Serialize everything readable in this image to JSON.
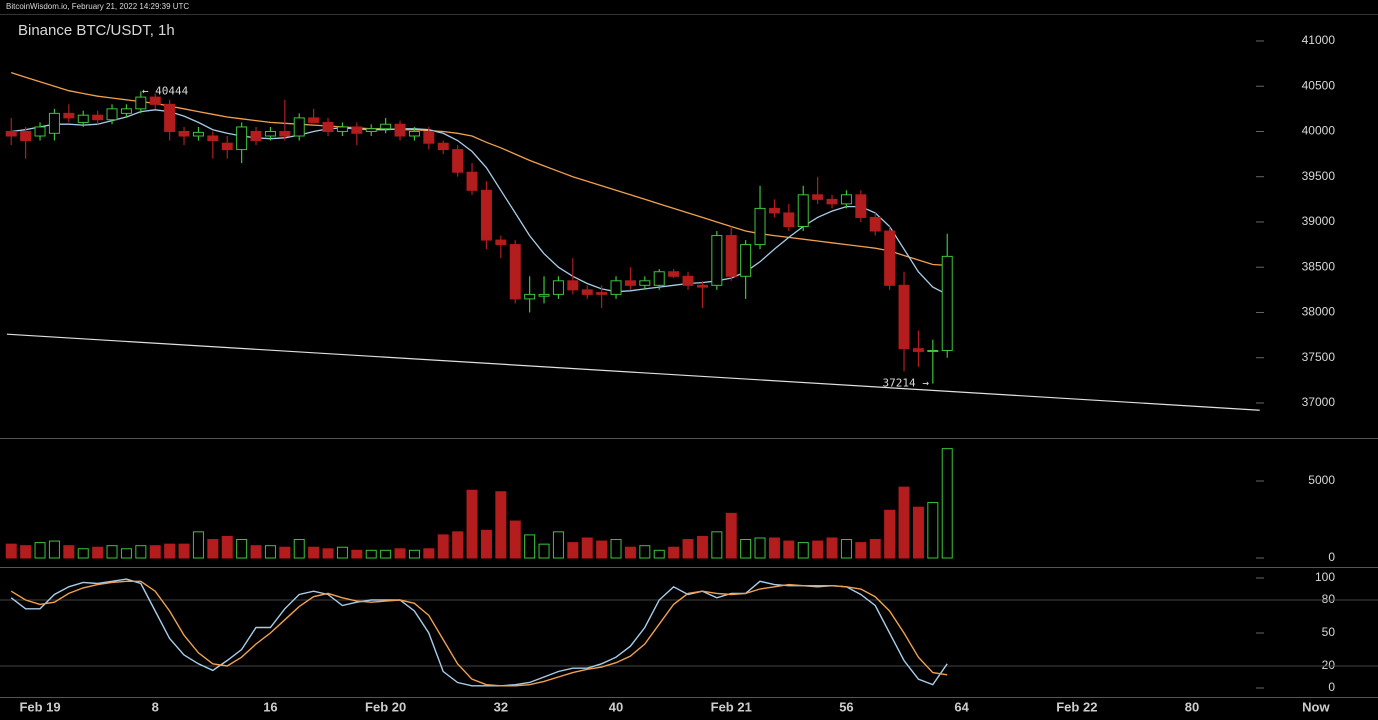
{
  "header": "BitcoinWisdom.io, February 21, 2022 14:29:39 UTC",
  "chart_data": [
    {
      "type": "candlestick",
      "title": "Binance BTC/USDT, 1h",
      "x": [
        -2,
        -1,
        0,
        1,
        2,
        3,
        4,
        5,
        6,
        7,
        8,
        9,
        10,
        11,
        12,
        13,
        14,
        15,
        16,
        17,
        18,
        19,
        20,
        21,
        22,
        23,
        24,
        25,
        26,
        27,
        28,
        29,
        30,
        31,
        32,
        33,
        34,
        35,
        36,
        37,
        38,
        39,
        40,
        41,
        42,
        43,
        44,
        45,
        46,
        47,
        48,
        49,
        50,
        51,
        52,
        53,
        54,
        55,
        56,
        57,
        58,
        59,
        60,
        61,
        62,
        63
      ],
      "open": [
        40000,
        40000,
        39950,
        39980,
        40200,
        40100,
        40180,
        40130,
        40200,
        40250,
        40380,
        40300,
        40000,
        39950,
        39950,
        39870,
        39800,
        40000,
        39950,
        40000,
        39950,
        40150,
        40100,
        40000,
        40050,
        40000,
        40030,
        40080,
        39950,
        40000,
        39870,
        39800,
        39550,
        39350,
        38800,
        38750,
        38150,
        38180,
        38200,
        38350,
        38250,
        38220,
        38200,
        38350,
        38300,
        38300,
        38450,
        38400,
        38300,
        38300,
        38850,
        38400,
        38750,
        39150,
        39100,
        38950,
        39300,
        39250,
        39200,
        39300,
        39050,
        38900,
        38300,
        37600,
        37570,
        37580
      ],
      "high": [
        40150,
        40050,
        40100,
        40250,
        40300,
        40230,
        40230,
        40300,
        40300,
        40444,
        40420,
        40350,
        40050,
        40050,
        40000,
        39950,
        40100,
        40050,
        40050,
        40350,
        40200,
        40250,
        40150,
        40100,
        40100,
        40080,
        40150,
        40120,
        40050,
        40050,
        39900,
        39850,
        39650,
        39450,
        38850,
        38800,
        38400,
        38400,
        38400,
        38600,
        38300,
        38300,
        38400,
        38500,
        38400,
        38480,
        38480,
        38450,
        38350,
        38900,
        38950,
        38800,
        39400,
        39250,
        39200,
        39400,
        39500,
        39300,
        39350,
        39350,
        39100,
        38950,
        38450,
        37800,
        37700,
        38870
      ],
      "low": [
        39850,
        39700,
        39900,
        39900,
        40100,
        40050,
        40080,
        40080,
        40150,
        40200,
        40250,
        39900,
        39850,
        39900,
        39700,
        39700,
        39650,
        39850,
        39900,
        39900,
        39900,
        40100,
        39950,
        39950,
        39850,
        39950,
        39980,
        39900,
        39900,
        39800,
        39750,
        39500,
        39300,
        38700,
        38600,
        38100,
        38000,
        38100,
        38150,
        38200,
        38150,
        38050,
        38150,
        38250,
        38250,
        38250,
        38380,
        38250,
        38050,
        38250,
        38350,
        38150,
        38700,
        39050,
        38900,
        38900,
        39200,
        39150,
        39150,
        39000,
        38850,
        38250,
        37350,
        37400,
        37214,
        37500
      ],
      "close": [
        39950,
        39900,
        40050,
        40200,
        40150,
        40180,
        40130,
        40250,
        40250,
        40380,
        40300,
        40000,
        39950,
        39990,
        39900,
        39800,
        40050,
        39900,
        40000,
        39950,
        40150,
        40100,
        40000,
        40050,
        39980,
        40030,
        40080,
        39950,
        40000,
        39870,
        39800,
        39550,
        39350,
        38800,
        38750,
        38150,
        38200,
        38200,
        38350,
        38250,
        38200,
        38200,
        38350,
        38300,
        38350,
        38450,
        38400,
        38300,
        38280,
        38850,
        38400,
        38750,
        39150,
        39100,
        38950,
        39300,
        39250,
        39200,
        39300,
        39050,
        38900,
        38300,
        37600,
        37570,
        37580,
        38620
      ],
      "up_color": "#3cc43c",
      "down_color": "#b31d1d",
      "series": [
        {
          "color": "#f0a050",
          "values": [
            40650,
            40600,
            40550,
            40500,
            40450,
            40420,
            40390,
            40370,
            40350,
            40330,
            40310,
            40280,
            40250,
            40220,
            40190,
            40160,
            40140,
            40120,
            40100,
            40090,
            40080,
            40070,
            40060,
            40050,
            40040,
            40030,
            40030,
            40020,
            40020,
            40010,
            40000,
            39980,
            39950,
            39880,
            39820,
            39750,
            39680,
            39620,
            39560,
            39500,
            39450,
            39400,
            39350,
            39300,
            39250,
            39200,
            39150,
            39100,
            39050,
            39000,
            38950,
            38900,
            38870,
            38850,
            38830,
            38810,
            38790,
            38770,
            38750,
            38730,
            38710,
            38680,
            38630,
            38580,
            38530,
            38520
          ]
        },
        {
          "color": "#a8cce8",
          "values": [
            40000,
            40020,
            40050,
            40080,
            40080,
            40070,
            40080,
            40120,
            40160,
            40220,
            40240,
            40220,
            40170,
            40100,
            40020,
            39980,
            39950,
            39930,
            39920,
            39930,
            39960,
            40000,
            40030,
            40040,
            40030,
            40020,
            40020,
            40030,
            40030,
            40020,
            39980,
            39900,
            39780,
            39600,
            39350,
            39100,
            38850,
            38650,
            38500,
            38400,
            38320,
            38260,
            38230,
            38240,
            38260,
            38280,
            38300,
            38320,
            38330,
            38350,
            38380,
            38450,
            38560,
            38700,
            38830,
            38950,
            39050,
            39120,
            39170,
            39170,
            39100,
            38950,
            38700,
            38450,
            38280,
            38200
          ]
        }
      ],
      "trendline": {
        "x": [
          -2.3,
          84.7
        ],
        "values": [
          37760,
          36920
        ],
        "color": "#e0e0e0"
      },
      "annotations": [
        {
          "x": 7,
          "value": 40444,
          "label": "← 40444"
        },
        {
          "x": 62,
          "value": 37214,
          "label": "37214 →"
        }
      ],
      "xlim": [
        -2.78,
        84.72
      ],
      "ylim": [
        36613,
        41287
      ],
      "yticks": [
        37000,
        37500,
        38000,
        38500,
        39000,
        39500,
        40000,
        40500,
        41000
      ]
    },
    {
      "type": "bar",
      "values": [
        900,
        800,
        1000,
        1100,
        800,
        600,
        700,
        800,
        600,
        800,
        800,
        900,
        900,
        1700,
        1200,
        1400,
        1200,
        800,
        800,
        700,
        1200,
        700,
        600,
        700,
        500,
        500,
        500,
        600,
        500,
        600,
        1500,
        1700,
        4400,
        1800,
        4300,
        2400,
        1500,
        900,
        1700,
        1000,
        1300,
        1100,
        1200,
        700,
        800,
        500,
        700,
        1200,
        1400,
        1700,
        2900,
        1200,
        1300,
        1300,
        1100,
        1000,
        1100,
        1300,
        1200,
        1000,
        1200,
        3100,
        4600,
        3300,
        3600,
        7100
      ],
      "ylim": [
        -584,
        7792
      ],
      "yticks": [
        0,
        5000
      ]
    },
    {
      "type": "line",
      "series": [
        {
          "color": "#a8cce8",
          "values": [
            82,
            72,
            72,
            85,
            92,
            96,
            95,
            97,
            99,
            95,
            70,
            45,
            30,
            22,
            16,
            25,
            35,
            55,
            55,
            72,
            85,
            88,
            85,
            75,
            78,
            80,
            80,
            80,
            70,
            50,
            15,
            5,
            2,
            2,
            2,
            3,
            5,
            10,
            15,
            18,
            18,
            22,
            28,
            38,
            55,
            80,
            92,
            85,
            88,
            82,
            86,
            86,
            97,
            94,
            93,
            93,
            92,
            93,
            92,
            85,
            75,
            50,
            25,
            8,
            3,
            22
          ]
        },
        {
          "color": "#f0a050",
          "values": [
            88,
            80,
            76,
            78,
            86,
            91,
            94,
            96,
            97,
            97,
            88,
            70,
            48,
            32,
            22,
            20,
            28,
            40,
            50,
            62,
            74,
            83,
            86,
            82,
            79,
            78,
            79,
            80,
            77,
            66,
            44,
            22,
            8,
            3,
            2,
            2,
            3,
            6,
            10,
            14,
            17,
            19,
            23,
            29,
            40,
            58,
            76,
            86,
            88,
            86,
            85,
            86,
            90,
            92,
            94,
            93,
            93,
            93,
            92,
            90,
            83,
            70,
            50,
            28,
            14,
            12
          ]
        }
      ],
      "ylim": [
        -10.9,
        110
      ],
      "yticks": [
        0,
        20,
        50,
        80,
        100
      ],
      "grid": [
        20,
        80
      ],
      "xticks": [
        {
          "value": 0,
          "label": "Feb 19"
        },
        8,
        16,
        {
          "value": 24,
          "label": "Feb 20"
        },
        32,
        40,
        {
          "value": 48,
          "label": "Feb 21"
        },
        56,
        64,
        {
          "value": 72,
          "label": "Feb 22"
        },
        80,
        {
          "value": 88.6,
          "label": "Now"
        }
      ]
    }
  ]
}
